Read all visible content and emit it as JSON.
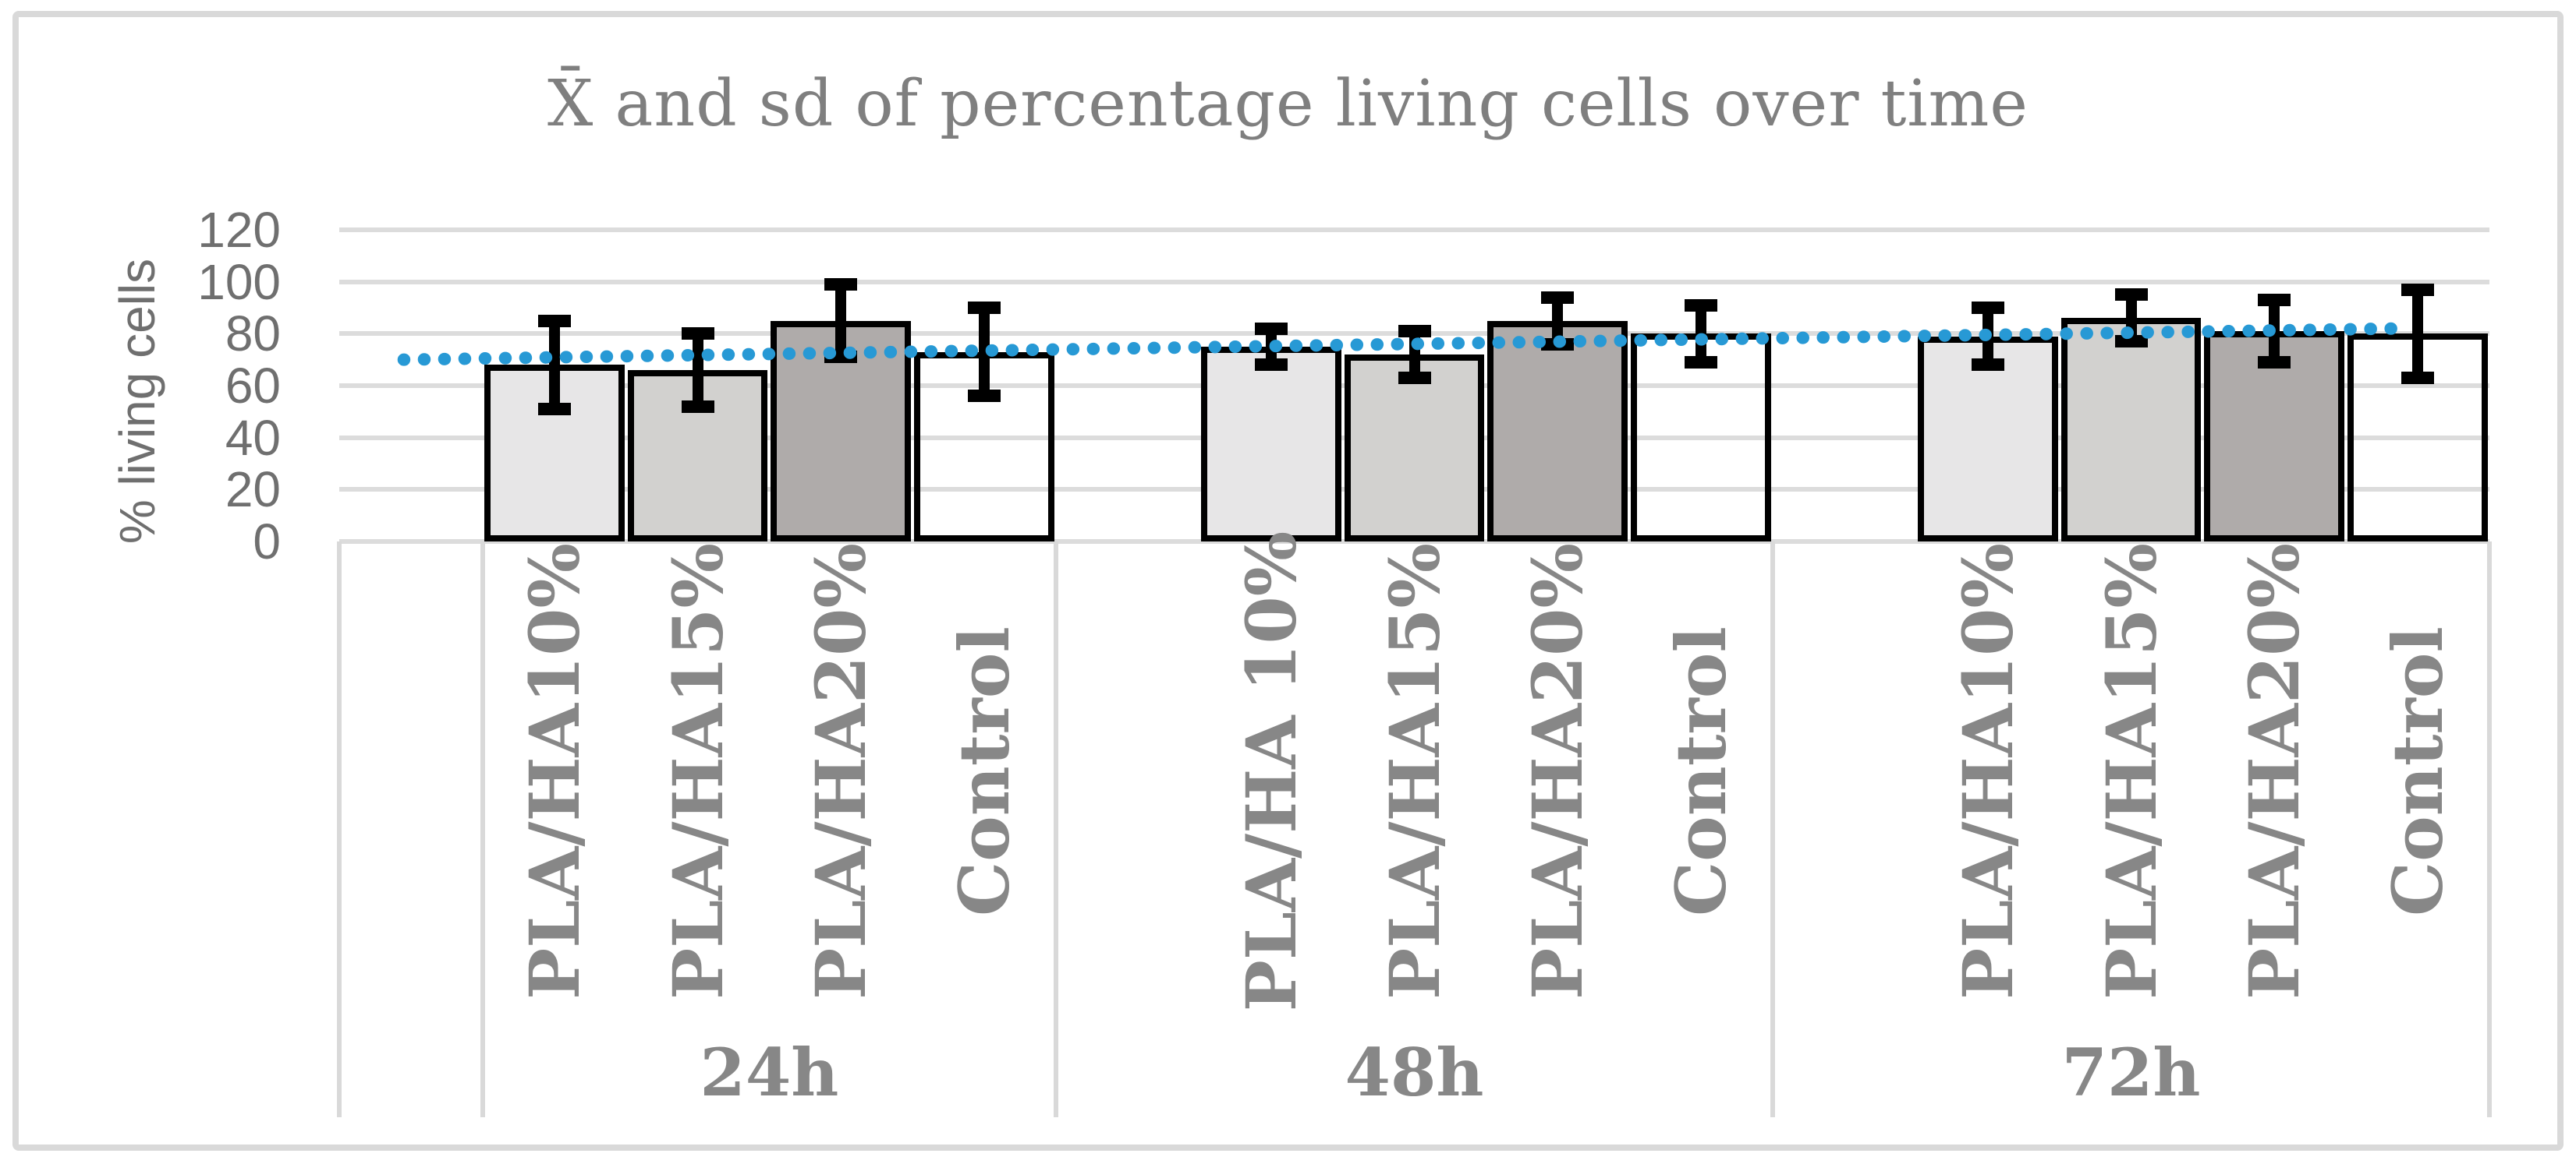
{
  "chart_data": {
    "type": "bar",
    "title": "X̄ and sd of percentage living cells over time",
    "xlabel": "",
    "ylabel": "% living cells",
    "ylim": [
      0,
      120
    ],
    "yticks": [
      0,
      20,
      40,
      60,
      80,
      100,
      120
    ],
    "grid": true,
    "legend": "none",
    "groups": [
      {
        "label": "24h",
        "bars": [
          {
            "label": "PLA/HA10%",
            "mean": 68,
            "sd": 17,
            "fill": "#e7e6e7"
          },
          {
            "label": "PLA/HA15%",
            "mean": 66,
            "sd": 14,
            "fill": "#d2d1cf"
          },
          {
            "label": "PLA/HA20%",
            "mean": 85,
            "sd": 14,
            "fill": "#afabaa"
          },
          {
            "label": "Control",
            "mean": 73,
            "sd": 17,
            "fill": "none"
          }
        ]
      },
      {
        "label": "48h",
        "bars": [
          {
            "label": "PLA/HA 10%",
            "mean": 75,
            "sd": 7,
            "fill": "#e7e6e7"
          },
          {
            "label": "PLA/HA15%",
            "mean": 72,
            "sd": 9,
            "fill": "#d2d1cf"
          },
          {
            "label": "PLA/HA20%",
            "mean": 85,
            "sd": 9,
            "fill": "#afabaa"
          },
          {
            "label": "Control",
            "mean": 80,
            "sd": 11,
            "fill": "none"
          }
        ]
      },
      {
        "label": "72h",
        "bars": [
          {
            "label": "PLA/HA10%",
            "mean": 79,
            "sd": 11,
            "fill": "#e7e6e7"
          },
          {
            "label": "PLA/HA15%",
            "mean": 86,
            "sd": 9,
            "fill": "#d2d1cf"
          },
          {
            "label": "PLA/HA20%",
            "mean": 81,
            "sd": 12,
            "fill": "#afabaa"
          },
          {
            "label": "Control",
            "mean": 80,
            "sd": 17,
            "fill": "none"
          }
        ]
      }
    ],
    "trendline": {
      "style": "dotted",
      "color": "#2799d5",
      "v_start": 70,
      "v_end": 82
    }
  },
  "colors": {
    "frame": "#d9d9d9",
    "gridline": "#dcdcdc",
    "bar_border": "#000000",
    "error_bar": "#000000",
    "serif_text": "#878787",
    "tick_text": "#6f6f6f",
    "trend_blue": "#2799d5"
  }
}
